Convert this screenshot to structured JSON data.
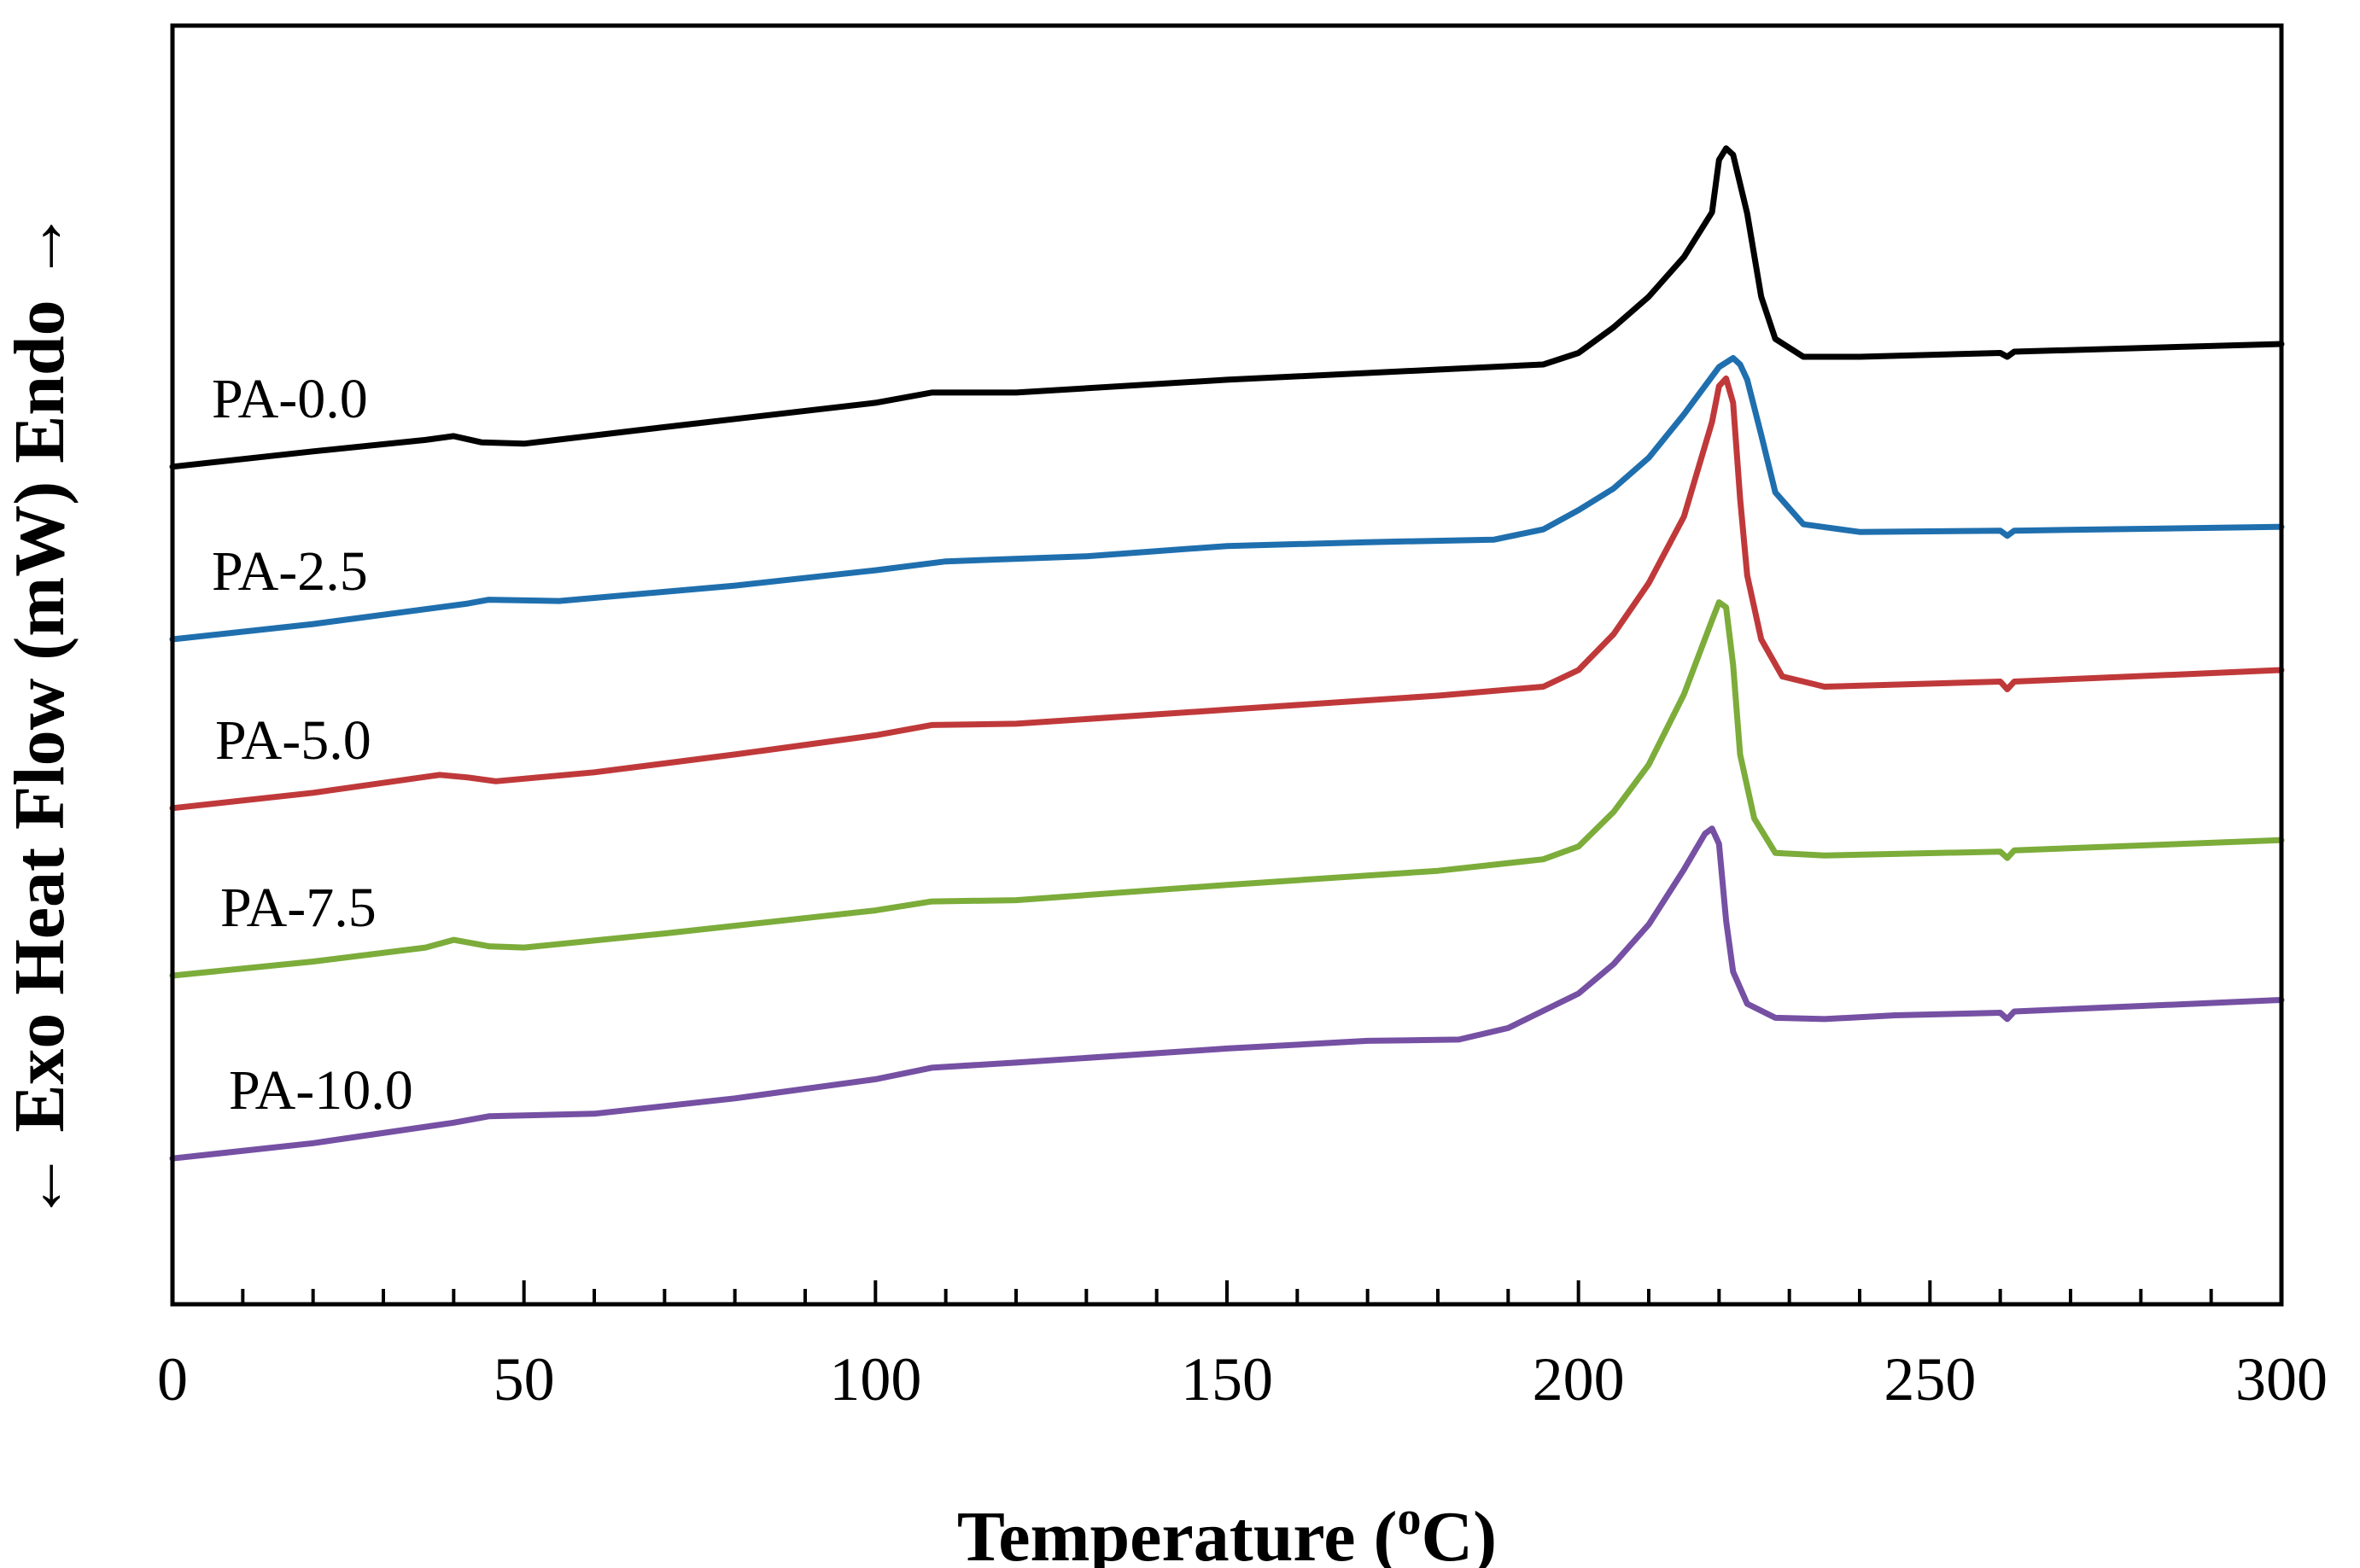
{
  "chart_data": {
    "type": "line",
    "title": "",
    "xlabel": "Temperature (",
    "xlabel_sup": "o",
    "xlabel_tail": "C)",
    "ylabel": "← Exo  Heat Flow (mW) Endo →",
    "xlim": [
      0,
      300
    ],
    "ylim": [
      0,
      100
    ],
    "xticks": [
      0,
      50,
      100,
      150,
      200,
      250,
      300
    ],
    "xticks_minor_step": 10,
    "y_units": "arbitrary offset heat flow",
    "series": [
      {
        "name": "PA-0.0",
        "color": "#000000",
        "points": [
          [
            0,
            65.5
          ],
          [
            20,
            66.7
          ],
          [
            36,
            67.6
          ],
          [
            40,
            67.9
          ],
          [
            44,
            67.4
          ],
          [
            50,
            67.3
          ],
          [
            70,
            68.6
          ],
          [
            100,
            70.5
          ],
          [
            108,
            71.3
          ],
          [
            120,
            71.3
          ],
          [
            150,
            72.3
          ],
          [
            180,
            73.1
          ],
          [
            195,
            73.5
          ],
          [
            200,
            74.4
          ],
          [
            205,
            76.4
          ],
          [
            210,
            78.8
          ],
          [
            215,
            81.9
          ],
          [
            219,
            85.4
          ],
          [
            220,
            89.5
          ],
          [
            221,
            90.4
          ],
          [
            222,
            89.9
          ],
          [
            224,
            85.3
          ],
          [
            226,
            78.8
          ],
          [
            228,
            75.5
          ],
          [
            232,
            74.1
          ],
          [
            240,
            74.1
          ],
          [
            260,
            74.4
          ],
          [
            261,
            74.1
          ],
          [
            262,
            74.5
          ],
          [
            300,
            75.1
          ]
        ]
      },
      {
        "name": "PA-2.5",
        "color": "#1f6fae",
        "points": [
          [
            0,
            52.0
          ],
          [
            20,
            53.2
          ],
          [
            42,
            54.8
          ],
          [
            45,
            55.1
          ],
          [
            55,
            55.0
          ],
          [
            80,
            56.2
          ],
          [
            100,
            57.4
          ],
          [
            110,
            58.1
          ],
          [
            130,
            58.5
          ],
          [
            150,
            59.3
          ],
          [
            170,
            59.6
          ],
          [
            188,
            59.8
          ],
          [
            195,
            60.6
          ],
          [
            200,
            62.1
          ],
          [
            205,
            63.8
          ],
          [
            210,
            66.2
          ],
          [
            215,
            69.6
          ],
          [
            220,
            73.3
          ],
          [
            222,
            74.0
          ],
          [
            223,
            73.5
          ],
          [
            224,
            72.3
          ],
          [
            226,
            68.0
          ],
          [
            228,
            63.5
          ],
          [
            232,
            61.0
          ],
          [
            240,
            60.4
          ],
          [
            260,
            60.5
          ],
          [
            261,
            60.1
          ],
          [
            262,
            60.5
          ],
          [
            300,
            60.8
          ]
        ]
      },
      {
        "name": "PA-5.0",
        "color": "#c0393a",
        "points": [
          [
            0,
            38.8
          ],
          [
            20,
            40.0
          ],
          [
            38,
            41.4
          ],
          [
            42,
            41.2
          ],
          [
            46,
            40.9
          ],
          [
            60,
            41.6
          ],
          [
            80,
            43.0
          ],
          [
            100,
            44.5
          ],
          [
            108,
            45.3
          ],
          [
            120,
            45.4
          ],
          [
            150,
            46.5
          ],
          [
            180,
            47.6
          ],
          [
            195,
            48.3
          ],
          [
            200,
            49.6
          ],
          [
            205,
            52.4
          ],
          [
            210,
            56.4
          ],
          [
            215,
            61.6
          ],
          [
            219,
            69.0
          ],
          [
            220,
            71.8
          ],
          [
            221,
            72.4
          ],
          [
            222,
            70.5
          ],
          [
            223,
            63.0
          ],
          [
            224,
            57.0
          ],
          [
            226,
            52.0
          ],
          [
            229,
            49.1
          ],
          [
            235,
            48.3
          ],
          [
            260,
            48.7
          ],
          [
            261,
            48.1
          ],
          [
            262,
            48.7
          ],
          [
            300,
            49.6
          ]
        ]
      },
      {
        "name": "PA-7.5",
        "color": "#7cac3a",
        "points": [
          [
            0,
            25.7
          ],
          [
            20,
            26.8
          ],
          [
            36,
            27.9
          ],
          [
            40,
            28.5
          ],
          [
            45,
            28.0
          ],
          [
            50,
            27.9
          ],
          [
            70,
            29.0
          ],
          [
            100,
            30.8
          ],
          [
            108,
            31.5
          ],
          [
            120,
            31.6
          ],
          [
            150,
            32.8
          ],
          [
            180,
            33.9
          ],
          [
            195,
            34.8
          ],
          [
            200,
            35.8
          ],
          [
            205,
            38.5
          ],
          [
            210,
            42.2
          ],
          [
            215,
            47.7
          ],
          [
            219,
            53.5
          ],
          [
            220,
            54.9
          ],
          [
            221,
            54.5
          ],
          [
            222,
            50.0
          ],
          [
            223,
            43.0
          ],
          [
            225,
            38.0
          ],
          [
            228,
            35.3
          ],
          [
            235,
            35.1
          ],
          [
            260,
            35.4
          ],
          [
            261,
            34.9
          ],
          [
            262,
            35.5
          ],
          [
            300,
            36.3
          ]
        ]
      },
      {
        "name": "PA-10.0",
        "color": "#7550a3",
        "points": [
          [
            0,
            11.4
          ],
          [
            20,
            12.6
          ],
          [
            40,
            14.2
          ],
          [
            45,
            14.7
          ],
          [
            60,
            14.9
          ],
          [
            80,
            16.1
          ],
          [
            100,
            17.6
          ],
          [
            108,
            18.5
          ],
          [
            120,
            18.9
          ],
          [
            150,
            20.0
          ],
          [
            170,
            20.6
          ],
          [
            183,
            20.7
          ],
          [
            190,
            21.6
          ],
          [
            200,
            24.3
          ],
          [
            205,
            26.6
          ],
          [
            210,
            29.7
          ],
          [
            215,
            34.0
          ],
          [
            218,
            36.8
          ],
          [
            219,
            37.2
          ],
          [
            220,
            36.0
          ],
          [
            221,
            30.0
          ],
          [
            222,
            26.0
          ],
          [
            224,
            23.5
          ],
          [
            228,
            22.4
          ],
          [
            235,
            22.3
          ],
          [
            245,
            22.6
          ],
          [
            260,
            22.8
          ],
          [
            261,
            22.3
          ],
          [
            262,
            22.9
          ],
          [
            300,
            23.8
          ]
        ]
      }
    ],
    "annotations": [
      "PA-0.0",
      "PA-2.5",
      "PA-5.0",
      "PA-7.5",
      "PA-10.0"
    ]
  }
}
